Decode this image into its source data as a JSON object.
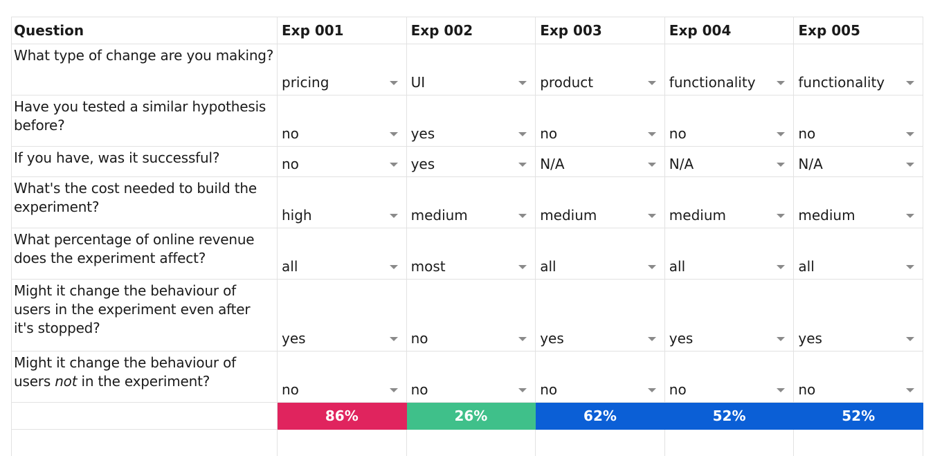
{
  "header": {
    "question_label": "Question",
    "experiments": [
      "Exp 001",
      "Exp 002",
      "Exp 003",
      "Exp 004",
      "Exp 005"
    ]
  },
  "rows": [
    {
      "question": "What type of change are you making?",
      "values": [
        "pricing",
        "UI",
        "product",
        "functionality",
        "functionality"
      ]
    },
    {
      "question": "Have you tested a similar hypothesis before?",
      "values": [
        "no",
        "yes",
        "no",
        "no",
        "no"
      ]
    },
    {
      "question": "If you have, was it successful?",
      "values": [
        "no",
        "yes",
        "N/A",
        "N/A",
        "N/A"
      ]
    },
    {
      "question": "What's the cost needed to build the experiment?",
      "values": [
        "high",
        "medium",
        "medium",
        "medium",
        "medium"
      ]
    },
    {
      "question": "What percentage of online revenue does the experiment affect?",
      "values": [
        "all",
        "most",
        "all",
        "all",
        "all"
      ]
    },
    {
      "question": "Might it change the behaviour of users in the experiment even after it's stopped?",
      "values": [
        "yes",
        "no",
        "yes",
        "yes",
        "yes"
      ]
    },
    {
      "question_parts": [
        "Might it change the behaviour of users ",
        "not",
        " in the experiment?"
      ],
      "values": [
        "no",
        "no",
        "no",
        "no",
        "no"
      ]
    }
  ],
  "scores": [
    {
      "label": "86%",
      "color": "#e0245e"
    },
    {
      "label": "26%",
      "color": "#3fc08a"
    },
    {
      "label": "62%",
      "color": "#0b5fd6"
    },
    {
      "label": "52%",
      "color": "#0b5fd6"
    },
    {
      "label": "52%",
      "color": "#0b5fd6"
    }
  ],
  "icons": {
    "dropdown": "caret-down-icon"
  }
}
